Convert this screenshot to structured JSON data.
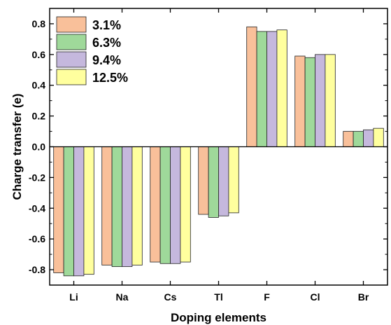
{
  "chart_data": {
    "type": "bar",
    "title": "",
    "xlabel": "Doping elements",
    "ylabel": "Charge transfer (e)",
    "categories": [
      "Li",
      "Na",
      "Cs",
      "Tl",
      "F",
      "Cl",
      "Br"
    ],
    "ylim": [
      -0.9,
      0.9
    ],
    "yticks": [
      -0.8,
      -0.6,
      -0.4,
      -0.2,
      0.0,
      0.2,
      0.4,
      0.6,
      0.8
    ],
    "ytick_labels": [
      "-0.8",
      "-0.6",
      "-0.4",
      "-0.2",
      "0.0",
      "0.2",
      "0.4",
      "0.6",
      "0.8"
    ],
    "grid": false,
    "legend_position": "top-left",
    "series": [
      {
        "name": "3.1%",
        "color": "#f9c09a",
        "values": [
          -0.82,
          -0.77,
          -0.75,
          -0.44,
          0.78,
          0.59,
          0.1
        ]
      },
      {
        "name": "6.3%",
        "color": "#9fd99a",
        "values": [
          -0.84,
          -0.78,
          -0.76,
          -0.46,
          0.75,
          0.58,
          0.1
        ]
      },
      {
        "name": "9.4%",
        "color": "#c5b8dd",
        "values": [
          -0.84,
          -0.78,
          -0.76,
          -0.45,
          0.75,
          0.6,
          0.11
        ]
      },
      {
        "name": "12.5%",
        "color": "#ffff9e",
        "values": [
          -0.83,
          -0.77,
          -0.75,
          -0.43,
          0.76,
          0.6,
          0.12
        ]
      }
    ]
  }
}
